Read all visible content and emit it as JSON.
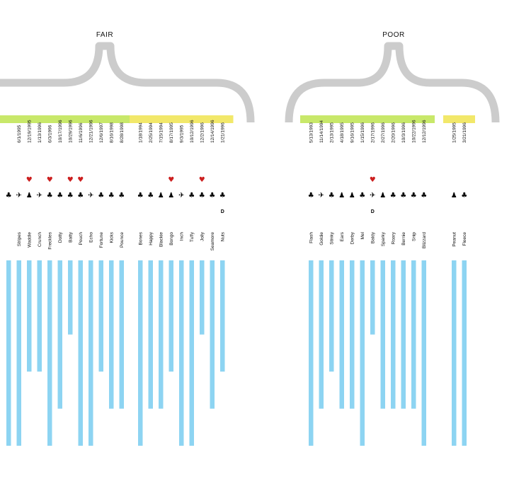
{
  "colors": {
    "brace": "#cccccc",
    "green_bar": "#c8e86a",
    "yellow_bar": "#f2e86a",
    "blue_bar": "#8dd4f2",
    "heart": "#cc1f1f",
    "glyph": "#000000"
  },
  "chart_data": {
    "type": "bar",
    "groups": [
      {
        "title": "FAIR",
        "subgroups": [
          {
            "band": "green",
            "items": [
              {
                "name": "",
                "date": "",
                "glyph": "bear",
                "heart": false,
                "d": false,
                "value": 1.0
              },
              {
                "name": "Stripes",
                "date": "6/1/1995",
                "glyph": "bird",
                "heart": false,
                "d": false,
                "value": 1.0
              },
              {
                "name": "Waddle",
                "date": "12/19/1995",
                "glyph": "penguin",
                "heart": true,
                "d": false,
                "value": 0.6
              },
              {
                "name": "Crunch",
                "date": "1/13/1996",
                "glyph": "bird",
                "heart": false,
                "d": false,
                "value": 0.6
              },
              {
                "name": "Freckles",
                "date": "6/3/1996",
                "glyph": "bear",
                "heart": true,
                "d": false,
                "value": 1.0
              },
              {
                "name": "Dotty",
                "date": "10/17/1996",
                "glyph": "bear",
                "heart": false,
                "d": false,
                "value": 0.8
              },
              {
                "name": "Batty",
                "date": "10/29/1996",
                "glyph": "bear",
                "heart": true,
                "d": false,
                "value": 0.4
              },
              {
                "name": "Pouch",
                "date": "11/6/1996",
                "glyph": "bear",
                "heart": true,
                "d": false,
                "value": 1.0
              },
              {
                "name": "Echo",
                "date": "12/21/1996",
                "glyph": "bird",
                "heart": false,
                "d": false,
                "value": 1.0
              },
              {
                "name": "Fortune",
                "date": "12/6/1997",
                "glyph": "bear",
                "heart": false,
                "d": false,
                "value": 0.6
              },
              {
                "name": "Kicks",
                "date": "8/16/1998",
                "glyph": "bear",
                "heart": false,
                "d": false,
                "value": 0.8
              },
              {
                "name": "Pounce",
                "date": "8/28/1998",
                "glyph": "bear",
                "heart": false,
                "d": false,
                "value": 0.8
              }
            ]
          },
          {
            "band": "yellow",
            "items": [
              {
                "name": "Bones",
                "date": "1/18/1994",
                "glyph": "bear",
                "heart": false,
                "d": false,
                "value": 1.0
              },
              {
                "name": "Happy",
                "date": "2/25/1994",
                "glyph": "bear",
                "heart": false,
                "d": false,
                "value": 0.8
              },
              {
                "name": "Blackie",
                "date": "7/15/1994",
                "glyph": "penguin",
                "heart": false,
                "d": false,
                "value": 0.8
              },
              {
                "name": "Bongo",
                "date": "8/17/1995",
                "glyph": "penguin",
                "heart": true,
                "d": false,
                "value": 0.6
              },
              {
                "name": "Inch",
                "date": "9/3/1995",
                "glyph": "bird",
                "heart": false,
                "d": false,
                "value": 1.0
              },
              {
                "name": "Tuffy",
                "date": "10/12/1996",
                "glyph": "bear",
                "heart": false,
                "d": false,
                "value": 1.0
              },
              {
                "name": "Jolly",
                "date": "12/2/1996",
                "glyph": "bear",
                "heart": true,
                "d": false,
                "value": 0.4
              },
              {
                "name": "Seamore",
                "date": "12/14/1996",
                "glyph": "bear",
                "heart": false,
                "d": false,
                "value": 0.8
              },
              {
                "name": "Nuts",
                "date": "1/21/1996",
                "glyph": "bear",
                "heart": false,
                "d": true,
                "value": 0.6
              }
            ]
          }
        ]
      },
      {
        "title": "POOR",
        "subgroups": [
          {
            "band": "green",
            "items": [
              {
                "name": "Flash",
                "date": "5/13/1993",
                "glyph": "bear",
                "heart": false,
                "d": false,
                "value": 1.0
              },
              {
                "name": "Goldie",
                "date": "11/14/1994",
                "glyph": "bird",
                "heart": false,
                "d": false,
                "value": 0.8
              },
              {
                "name": "Stinky",
                "date": "2/13/1995",
                "glyph": "bear",
                "heart": false,
                "d": false,
                "value": 0.6
              },
              {
                "name": "Ears",
                "date": "4/18/1995",
                "glyph": "penguin",
                "heart": false,
                "d": false,
                "value": 0.8
              },
              {
                "name": "Derby",
                "date": "9/16/1995",
                "glyph": "penguin",
                "heart": false,
                "d": false,
                "value": 0.8
              },
              {
                "name": "Mel",
                "date": "1/15/1996",
                "glyph": "bear",
                "heart": false,
                "d": false,
                "value": 1.0
              },
              {
                "name": "Baldy",
                "date": "2/17/1996",
                "glyph": "bird",
                "heart": true,
                "d": true,
                "value": 0.4
              },
              {
                "name": "Sparky",
                "date": "2/27/1996",
                "glyph": "penguin",
                "heart": false,
                "d": false,
                "value": 0.8
              },
              {
                "name": "Roary",
                "date": "2/20/1996",
                "glyph": "bear",
                "heart": false,
                "d": false,
                "value": 0.8
              },
              {
                "name": "Bernie",
                "date": "10/3/1996",
                "glyph": "bear",
                "heart": false,
                "d": false,
                "value": 0.8
              },
              {
                "name": "Snip",
                "date": "10/22/1996",
                "glyph": "bear",
                "heart": false,
                "d": false,
                "value": 0.8
              },
              {
                "name": "Blizzard",
                "date": "12/12/1996",
                "glyph": "bear",
                "heart": false,
                "d": false,
                "value": 1.0
              }
            ]
          },
          {
            "band": "yellow",
            "items": [
              {
                "name": "Peanut",
                "date": "1/25/1995",
                "glyph": "penguin",
                "heart": false,
                "d": false,
                "value": 1.0
              },
              {
                "name": "Fleece",
                "date": "3/21/1996",
                "glyph": "bear",
                "heart": false,
                "d": false,
                "value": 1.0
              }
            ]
          }
        ]
      }
    ],
    "d_label": "D",
    "ylim": [
      0,
      1
    ]
  }
}
